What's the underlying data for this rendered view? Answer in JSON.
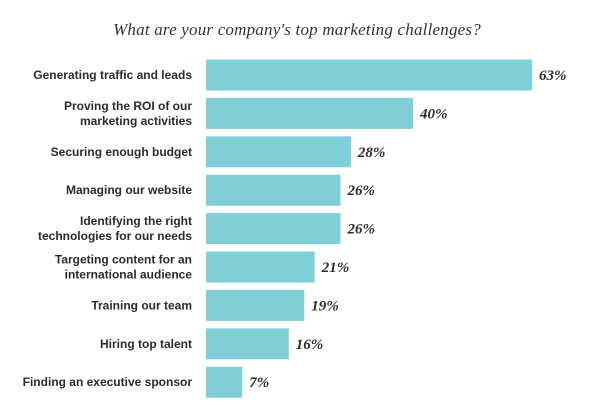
{
  "chart_data": {
    "type": "bar",
    "orientation": "horizontal",
    "title": "What are your company's top marketing challenges?",
    "categories": [
      [
        "Generating traffic and leads"
      ],
      [
        "Proving the ROI of our",
        "marketing activities"
      ],
      [
        "Securing enough budget"
      ],
      [
        "Managing our website"
      ],
      [
        "Identifying the right",
        "technologies for our needs"
      ],
      [
        "Targeting content for an",
        "international audience"
      ],
      [
        "Training our team"
      ],
      [
        "Hiring top talent"
      ],
      [
        "Finding an executive sponsor"
      ]
    ],
    "values": [
      63,
      40,
      28,
      26,
      26,
      21,
      19,
      16,
      7
    ],
    "value_labels": [
      "63%",
      "40%",
      "28%",
      "26%",
      "26%",
      "21%",
      "19%",
      "16%",
      "7%"
    ],
    "xlim": [
      0,
      63
    ],
    "grid": false,
    "legend": "none",
    "bar_color": "#80cfd8"
  }
}
